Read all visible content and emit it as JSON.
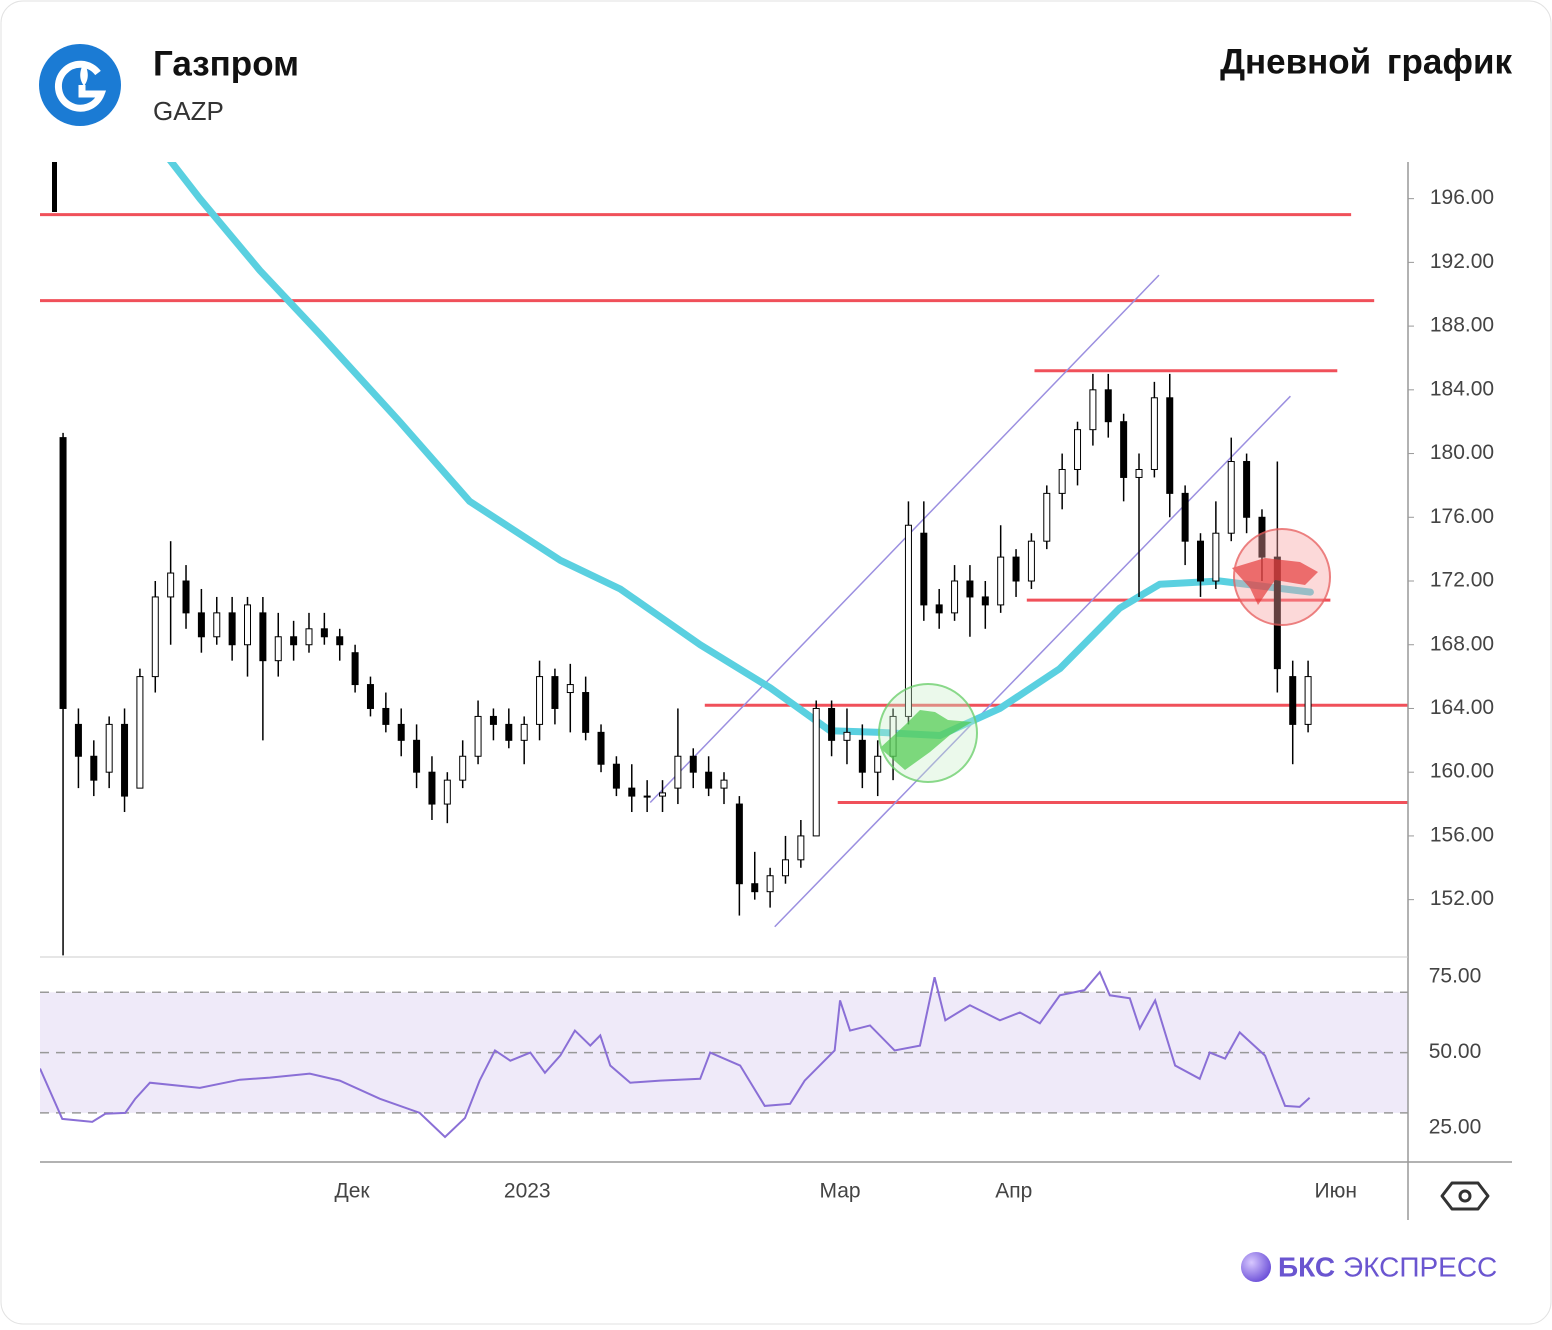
{
  "header": {
    "title": "Газпром",
    "ticker": "GAZP",
    "chart_label": "Дневной график"
  },
  "footer": {
    "brand": "БКС",
    "product": "ЭКСПРЕСС"
  },
  "chart_data": [
    {
      "type": "candlestick",
      "up_color": "#ffffff",
      "down_color": "#000000",
      "xlim": [
        0,
        178
      ],
      "ylim": [
        148.4,
        198.3
      ],
      "yticks": [
        {
          "value": 152,
          "label": "152.00"
        },
        {
          "value": 156,
          "label": "156.00"
        },
        {
          "value": 160,
          "label": "160.00"
        },
        {
          "value": 164,
          "label": "164.00"
        },
        {
          "value": 168,
          "label": "168.00"
        },
        {
          "value": 172,
          "label": "172.00"
        },
        {
          "value": 176,
          "label": "176.00"
        },
        {
          "value": 180,
          "label": "180.00"
        },
        {
          "value": 184,
          "label": "184.00"
        },
        {
          "value": 188,
          "label": "188.00"
        },
        {
          "value": 192,
          "label": "192.00"
        },
        {
          "value": 196,
          "label": "196.00"
        }
      ],
      "xticks": [
        {
          "value": 40.6,
          "label": "Дек"
        },
        {
          "value": 63.4,
          "label": "2023"
        },
        {
          "value": 104.1,
          "label": "Мар"
        },
        {
          "value": 126.7,
          "label": "Апр"
        },
        {
          "value": 168.6,
          "label": "Июн"
        }
      ],
      "candles": [
        [
          3,
          181,
          181.3,
          148.5,
          164
        ],
        [
          5,
          163,
          164,
          159,
          161
        ],
        [
          7,
          161,
          162,
          158.5,
          159.5
        ],
        [
          9,
          160,
          163.5,
          159,
          163
        ],
        [
          11,
          163,
          164,
          157.5,
          158.5
        ],
        [
          13,
          159,
          166.5,
          159,
          166
        ],
        [
          15,
          166,
          172,
          165,
          171
        ],
        [
          17,
          171,
          174.5,
          168,
          172.5
        ],
        [
          19,
          172,
          173,
          169,
          170
        ],
        [
          21,
          170,
          171.5,
          167.5,
          168.5
        ],
        [
          23,
          168.5,
          171,
          168,
          170
        ],
        [
          25,
          170,
          171,
          167,
          168
        ],
        [
          27,
          168,
          171,
          166,
          170.5
        ],
        [
          29,
          170,
          171,
          162,
          167
        ],
        [
          31,
          167,
          170,
          166,
          168.5
        ],
        [
          33,
          168.5,
          169.5,
          167,
          168
        ],
        [
          35,
          168,
          170,
          167.5,
          169
        ],
        [
          37,
          169,
          170,
          168,
          168.5
        ],
        [
          39,
          168.5,
          169,
          167,
          168
        ],
        [
          41,
          167.5,
          168,
          165,
          165.5
        ],
        [
          43,
          165.5,
          166,
          163.5,
          164
        ],
        [
          45,
          164,
          165,
          162.5,
          163
        ],
        [
          47,
          163,
          164,
          161,
          162
        ],
        [
          49,
          162,
          163,
          159,
          160
        ],
        [
          51,
          160,
          161,
          157,
          158
        ],
        [
          53,
          158,
          160,
          156.8,
          159.5
        ],
        [
          55,
          159.5,
          162,
          159,
          161
        ],
        [
          57,
          161,
          164.5,
          160.5,
          163.5
        ],
        [
          59,
          163.5,
          164,
          162,
          163
        ],
        [
          61,
          163,
          164,
          161.5,
          162
        ],
        [
          63,
          162,
          163.5,
          160.5,
          163
        ],
        [
          65,
          163,
          167,
          162,
          166
        ],
        [
          67,
          166,
          166.5,
          163,
          164
        ],
        [
          69,
          165,
          166.8,
          162.5,
          165.5
        ],
        [
          71,
          165,
          166,
          162,
          162.5
        ],
        [
          73,
          162.5,
          163,
          160,
          160.5
        ],
        [
          75,
          160.5,
          161,
          158.5,
          159
        ],
        [
          77,
          159,
          160.5,
          157.5,
          158.5
        ],
        [
          79,
          158.5,
          159.5,
          157.5,
          158.5
        ],
        [
          81,
          158.5,
          159.5,
          157.5,
          158.7
        ],
        [
          83,
          159,
          164,
          158,
          161
        ],
        [
          85,
          161,
          161.5,
          159,
          160
        ],
        [
          87,
          160,
          161,
          158.5,
          159
        ],
        [
          89,
          159,
          160,
          158,
          159.5
        ],
        [
          91,
          158,
          158.5,
          151,
          153
        ],
        [
          93,
          153,
          155,
          152,
          152.5
        ],
        [
          95,
          152.5,
          154,
          151.5,
          153.5
        ],
        [
          97,
          153.5,
          156,
          153,
          154.5
        ],
        [
          99,
          154.5,
          157,
          154,
          156
        ],
        [
          101,
          156,
          164.5,
          156,
          164
        ],
        [
          103,
          164,
          164.5,
          161,
          162
        ],
        [
          105,
          162,
          164,
          160.5,
          162.5
        ],
        [
          107,
          162,
          163,
          159,
          160
        ],
        [
          109,
          160,
          162,
          158.5,
          161
        ],
        [
          111,
          161,
          164,
          159.5,
          163.5
        ],
        [
          113,
          163.5,
          177,
          163,
          175.5
        ],
        [
          115,
          175,
          177,
          169.5,
          170.5
        ],
        [
          117,
          170.5,
          171.5,
          169,
          170
        ],
        [
          119,
          170,
          173,
          169.5,
          172
        ],
        [
          121,
          172,
          173,
          168.5,
          171
        ],
        [
          123,
          171,
          172,
          169,
          170.5
        ],
        [
          125,
          170.5,
          175.5,
          170,
          173.5
        ],
        [
          127,
          173.5,
          174,
          171,
          172
        ],
        [
          129,
          172,
          175,
          171.5,
          174.5
        ],
        [
          131,
          174.5,
          178,
          174,
          177.5
        ],
        [
          133,
          177.5,
          180,
          176.5,
          179
        ],
        [
          135,
          179,
          182,
          178,
          181.5
        ],
        [
          137,
          181.5,
          185,
          180.5,
          184
        ],
        [
          139,
          184,
          185,
          181,
          182
        ],
        [
          141,
          182,
          182.5,
          177,
          178.5
        ],
        [
          143,
          178.5,
          180,
          171,
          179
        ],
        [
          145,
          179,
          184.5,
          178.5,
          183.5
        ],
        [
          147,
          183.5,
          185,
          176,
          177.5
        ],
        [
          149,
          177.5,
          178,
          173,
          174.5
        ],
        [
          151,
          174.5,
          175,
          171,
          172
        ],
        [
          153,
          172,
          177,
          171.5,
          175
        ],
        [
          155,
          175,
          181,
          174.5,
          179.5
        ],
        [
          157,
          179.5,
          180,
          175,
          176
        ],
        [
          159,
          176,
          176.5,
          172,
          173.5
        ],
        [
          161,
          173.5,
          179.5,
          165,
          166.5
        ],
        [
          163,
          166,
          167,
          160.5,
          163
        ],
        [
          165,
          163,
          167,
          162.5,
          166
        ]
      ],
      "ma": {
        "color": "#5ad0e0",
        "x": [
          16.3,
          20.8,
          28.6,
          36.4,
          46.8,
          55.9,
          67.7,
          75.5,
          85.9,
          95,
          102.8,
          109.3,
          117.1,
          124.9,
          132.7,
          140.5,
          145.7,
          153.5,
          165.3
        ],
        "values": [
          198.8,
          196,
          191.5,
          187.5,
          182,
          177,
          173.3,
          171.5,
          168,
          165.3,
          162.6,
          162.5,
          162.3,
          164,
          166.5,
          170.3,
          171.8,
          172,
          171.3
        ]
      },
      "levels": [
        {
          "value": 195,
          "x": [
            0,
            170.6
          ]
        },
        {
          "value": 189.6,
          "x": [
            0,
            173.6
          ]
        },
        {
          "value": 185.2,
          "x": [
            129.4,
            168.8
          ]
        },
        {
          "value": 170.8,
          "x": [
            128.4,
            167.9
          ]
        },
        {
          "value": 164.2,
          "x": [
            86.5,
            178
          ]
        },
        {
          "value": 158.1,
          "x": [
            103.8,
            178
          ]
        }
      ],
      "level_color": "#f0505a",
      "channels": [
        {
          "x": [
            79.4,
            145.6
          ],
          "y": [
            158.1,
            191.2
          ]
        },
        {
          "x": [
            95.6,
            162.7
          ],
          "y": [
            150.3,
            183.6
          ]
        }
      ],
      "channel_color": "#9b8fe0"
    },
    {
      "type": "line",
      "color": "#8a6fd6",
      "ylim": [
        13.7,
        81.7
      ],
      "yticks": [
        {
          "value": 25,
          "label": "25.00"
        },
        {
          "value": 50,
          "label": "50.00"
        },
        {
          "value": 75,
          "label": "75.00"
        }
      ],
      "band": [
        30,
        70
      ],
      "levels": [
        30,
        50,
        70
      ],
      "x": [
        0,
        2.9,
        6.8,
        8.5,
        11.1,
        12.4,
        14.3,
        20.8,
        26,
        29.9,
        35.1,
        39,
        44.2,
        49.4,
        52.7,
        55.3,
        57.2,
        59.2,
        61.2,
        63.8,
        65.7,
        67.7,
        69.6,
        71.6,
        72.9,
        74.2,
        76.8,
        80.7,
        85.9,
        87.2,
        91.1,
        94.3,
        97.6,
        99.5,
        103.4,
        104.1,
        105.4,
        108,
        111.2,
        114.5,
        116.4,
        117.8,
        121,
        124.9,
        127.5,
        130.1,
        132.7,
        135.9,
        137.9,
        139.2,
        141.8,
        143.1,
        145.1,
        147.7,
        150.9,
        152.2,
        154.2,
        156.1,
        159.4,
        162,
        163.9,
        165.2
      ],
      "values": [
        44.7,
        28,
        27,
        29.7,
        30,
        34.7,
        40,
        38.3,
        41,
        41.7,
        43,
        40.7,
        34.7,
        30,
        22,
        28.3,
        40.7,
        50.7,
        47.3,
        50,
        43.3,
        49,
        57.3,
        52.3,
        55.7,
        45.7,
        40,
        40.7,
        41.3,
        50,
        45.7,
        32.3,
        33,
        40.7,
        50.7,
        67.3,
        57.3,
        59,
        50.7,
        52.3,
        75,
        60.7,
        65.7,
        60.7,
        63.3,
        59.7,
        69,
        70.7,
        76.7,
        69,
        68,
        58,
        67.3,
        45.7,
        41.3,
        50,
        48,
        56.7,
        49,
        32.3,
        32,
        35
      ]
    }
  ]
}
